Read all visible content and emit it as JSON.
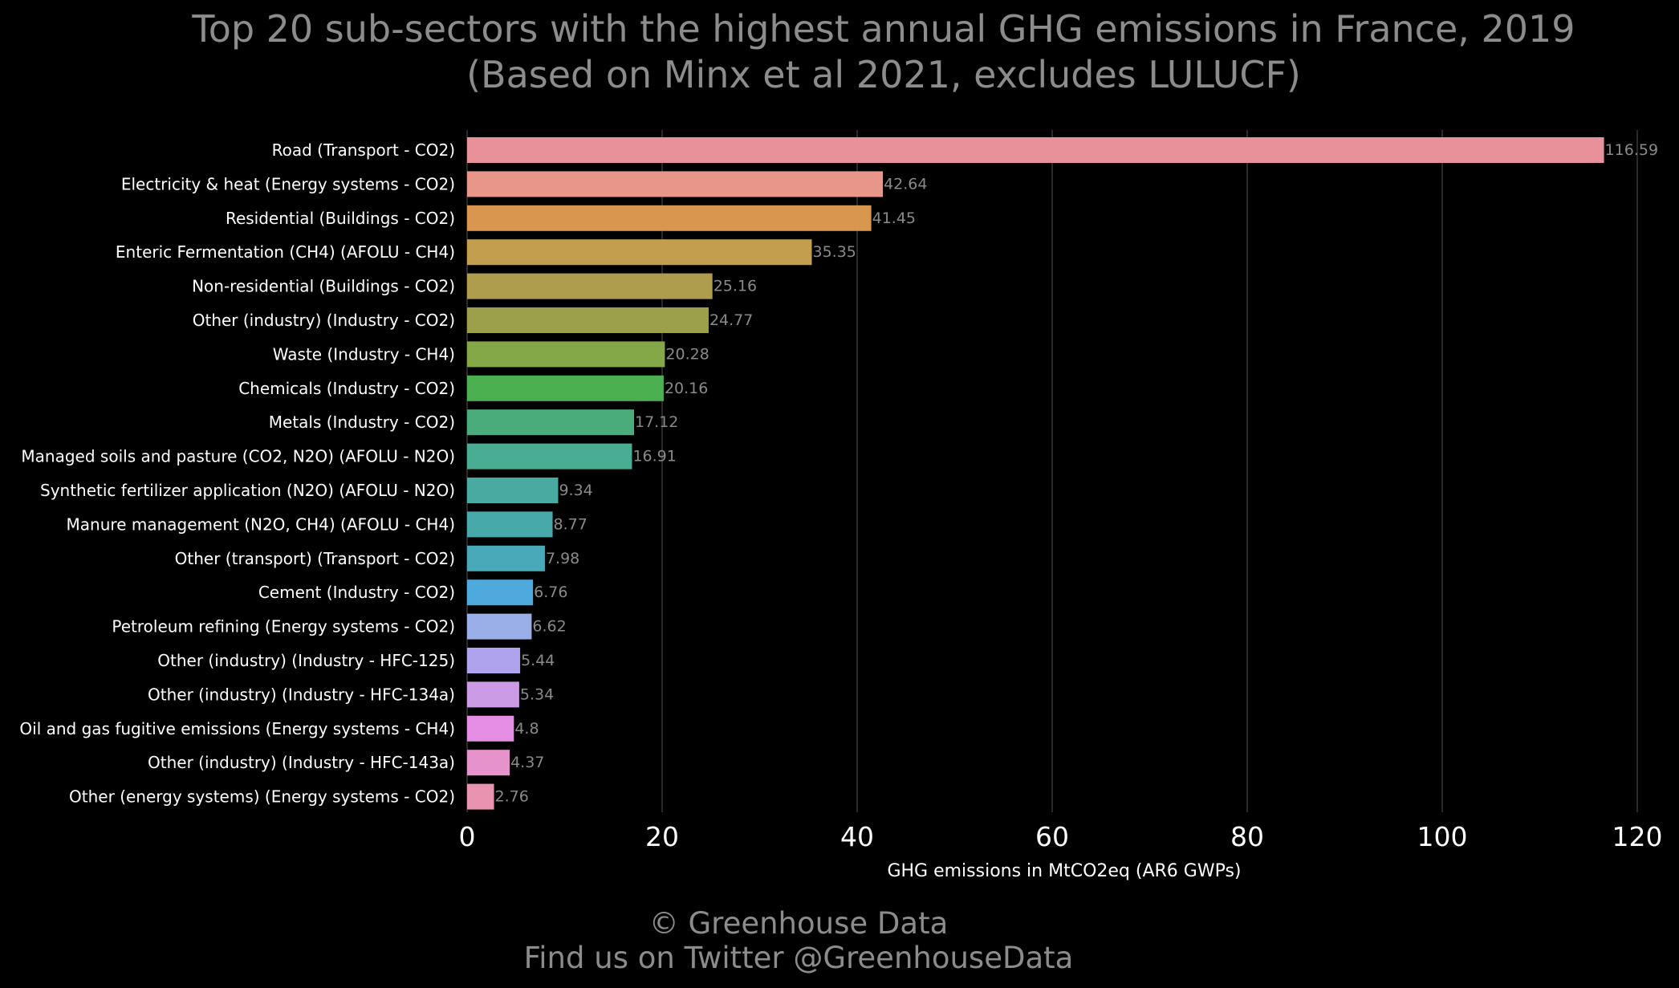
{
  "chart_data": {
    "type": "bar",
    "orientation": "horizontal",
    "title": "Top 20 sub-sectors with the highest annual GHG emissions in France, 2019",
    "subtitle": "(Based on Minx et al 2021, excludes LULUCF)",
    "xlabel": "GHG emissions in MtCO2eq (AR6 GWPs)",
    "ylabel": "",
    "xlim": [
      0,
      120
    ],
    "xticks": [
      0,
      20,
      40,
      60,
      80,
      100,
      120
    ],
    "grid": true,
    "categories": [
      "Road (Transport - CO2)",
      "Electricity & heat (Energy systems - CO2)",
      "Residential (Buildings - CO2)",
      "Enteric Fermentation (CH4) (AFOLU - CH4)",
      "Non-residential (Buildings - CO2)",
      "Other (industry) (Industry - CO2)",
      "Waste (Industry - CH4)",
      "Chemicals (Industry - CO2)",
      "Metals (Industry - CO2)",
      "Managed soils and pasture (CO2, N2O) (AFOLU - N2O)",
      "Synthetic fertilizer application (N2O) (AFOLU - N2O)",
      "Manure management (N2O, CH4) (AFOLU - CH4)",
      "Other (transport) (Transport - CO2)",
      "Cement (Industry - CO2)",
      "Petroleum refining (Energy systems - CO2)",
      "Other (industry) (Industry - HFC-125)",
      "Other (industry) (Industry - HFC-134a)",
      "Oil and gas fugitive emissions (Energy systems - CH4)",
      "Other (industry) (Industry - HFC-143a)",
      "Other (energy systems) (Energy systems - CO2)"
    ],
    "values": [
      116.59,
      42.64,
      41.45,
      35.35,
      25.16,
      24.77,
      20.28,
      20.16,
      17.12,
      16.91,
      9.34,
      8.77,
      7.98,
      6.76,
      6.62,
      5.44,
      5.34,
      4.8,
      4.37,
      2.76
    ],
    "value_labels": [
      "116.59",
      "42.64",
      "41.45",
      "35.35",
      "25.16",
      "24.77",
      "20.28",
      "20.16",
      "17.12",
      "16.91",
      "9.34",
      "8.77",
      "7.98",
      "6.76",
      "6.62",
      "5.44",
      "5.34",
      "4.8",
      "4.37",
      "2.76"
    ],
    "colors": [
      "#e8919b",
      "#e8968a",
      "#d9964e",
      "#c39e4f",
      "#ae9d4d",
      "#9da04b",
      "#84a748",
      "#4caf50",
      "#4aac7b",
      "#48ad93",
      "#48aaa0",
      "#47a9aa",
      "#4aa9b8",
      "#4eaadd",
      "#9aaee8",
      "#b0a3ee",
      "#cc9be6",
      "#e58ce4",
      "#e692cb",
      "#e893b0"
    ]
  },
  "footer": {
    "copyright": "© Greenhouse Data",
    "twitter": "Find us on Twitter @GreenhouseData"
  }
}
